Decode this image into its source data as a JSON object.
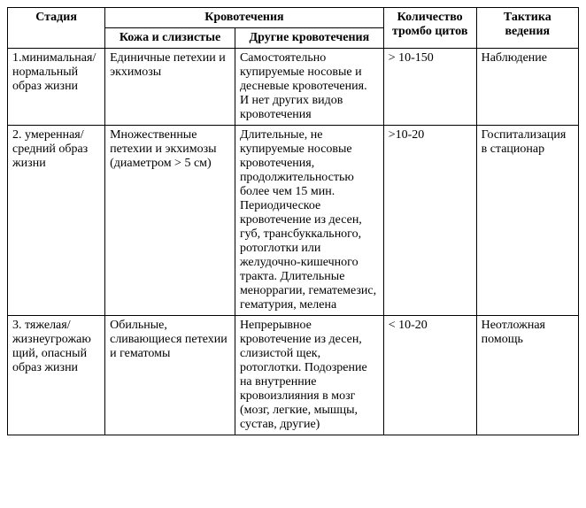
{
  "headers": {
    "stage": "Стадия",
    "bleeding": "Кровотечения",
    "skin": "Кожа и слизистые",
    "other": "Другие кровотечения",
    "count": "Количество тромбо цитов",
    "tactic": "Тактика ведения"
  },
  "rows": [
    {
      "stage": "1.минимальная/\nнормальный образ жизни",
      "skin": "Единичные петехии и экхимозы",
      "other": "Самостоятельно купируемые носовые и десневые кровотечения. И нет других видов кровотечения",
      "count": "> 10-150",
      "tactic": "Наблюдение"
    },
    {
      "stage": "2. умеренная/ средний образ жизни",
      "skin": "Множественные петехии и экхимозы (диаметром > 5 см)",
      "other": "Длительные, не купируемые носовые кровотечения, продолжительностью более чем 15 мин. Периодическое кровотечение из десен, губ, трансбуккального, ротоглотки или желудочно-кишечного тракта.\nДлительные меноррагии, гематемезис, гематурия, мелена",
      "count": ">10-20",
      "tactic": "Госпитализация в стационар"
    },
    {
      "stage": "3. тяжелая/ жизнеугрожающий, опасный образ жизни",
      "skin": "Обильные, сливающиеся петехии и гематомы",
      "other": "Непрерывное кровотечение из десен, слизистой щек, ротоглотки.\nПодозрение на внутренние кровоизлияния в мозг (мозг, легкие, мышцы, сустав, другие)",
      "count": "< 10-20",
      "tactic": "Неотложная помощь"
    }
  ]
}
